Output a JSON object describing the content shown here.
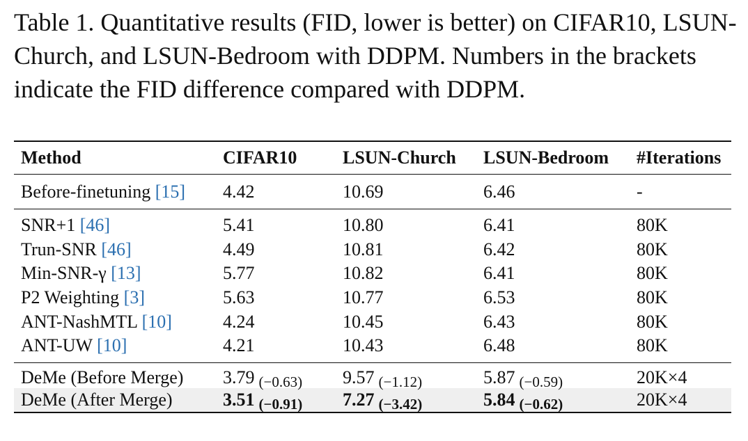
{
  "caption": "Table 1. Quantitative results (FID, lower is better) on CIFAR10, LSUN-Church, and LSUN-Bedroom with DDPM. Numbers in the brackets indicate the FID difference compared with DDPM.",
  "headers": [
    "Method",
    "CIFAR10",
    "LSUN-Church",
    "LSUN-Bedroom",
    "#Iterations"
  ],
  "baseline": {
    "method": "Before-finetuning ",
    "ref": "[15]",
    "cifar10": "4.42",
    "church": "10.69",
    "bedroom": "6.46",
    "iterations": "-"
  },
  "methods": [
    {
      "method": "SNR+1 ",
      "ref": "[46]",
      "cifar10": "5.41",
      "church": "10.80",
      "bedroom": "6.41",
      "iterations": "80K"
    },
    {
      "method": "Trun-SNR ",
      "ref": "[46]",
      "cifar10": "4.49",
      "church": "10.81",
      "bedroom": "6.42",
      "iterations": "80K"
    },
    {
      "method": "Min-SNR-γ ",
      "ref": "[13]",
      "cifar10": "5.77",
      "church": "10.82",
      "bedroom": "6.41",
      "iterations": "80K"
    },
    {
      "method": "P2 Weighting ",
      "ref": "[3]",
      "cifar10": "5.63",
      "church": "10.77",
      "bedroom": "6.53",
      "iterations": "80K"
    },
    {
      "method": "ANT-NashMTL ",
      "ref": "[10]",
      "cifar10": "4.24",
      "church": "10.45",
      "bedroom": "6.43",
      "iterations": "80K"
    },
    {
      "method": "ANT-UW ",
      "ref": "[10]",
      "cifar10": "4.21",
      "church": "10.43",
      "bedroom": "6.48",
      "iterations": "80K"
    }
  ],
  "deme_before": {
    "method": "DeMe (Before Merge)",
    "cifar10": "3.79",
    "cifar10_diff": "(−0.63)",
    "church": "9.57",
    "church_diff": "(−1.12)",
    "bedroom": "5.87",
    "bedroom_diff": "(−0.59)",
    "iterations": "20K×4"
  },
  "deme_after": {
    "method": "DeMe (After Merge)",
    "cifar10": "3.51",
    "cifar10_diff": "(−0.91)",
    "church": "7.27",
    "church_diff": "(−3.42)",
    "bedroom": "5.84",
    "bedroom_diff": "(−0.62)",
    "iterations": "20K×4"
  }
}
